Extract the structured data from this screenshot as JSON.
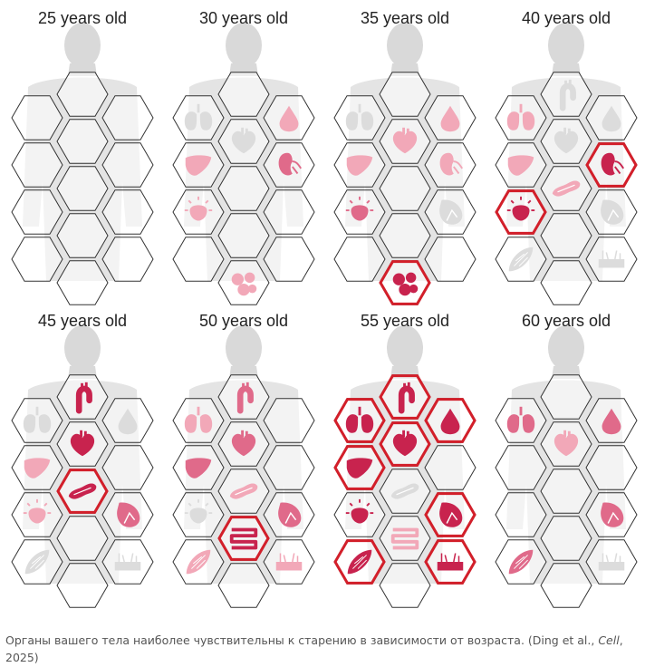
{
  "colors": {
    "highlight": "#d31f2a",
    "organ_strong": "#c8234e",
    "organ_medium": "#e06a8a",
    "organ_light": "#f2a8b8",
    "organ_faint": "#dcdcdc",
    "hex_outline": "#333333",
    "silhouette": "#d9d9d9"
  },
  "panels": [
    {
      "title": "25 years old",
      "organs": []
    },
    {
      "title": "30 years old",
      "organs": [
        {
          "slot": 1,
          "icon": "lungs-icon",
          "level": "faint",
          "highlight": false
        },
        {
          "slot": 2,
          "icon": "heart-icon",
          "level": "faint",
          "highlight": false
        },
        {
          "slot": 3,
          "icon": "blood-drop-icon",
          "level": "light",
          "highlight": false
        },
        {
          "slot": 4,
          "icon": "liver-icon",
          "level": "light",
          "highlight": false
        },
        {
          "slot": 6,
          "icon": "kidney-icon",
          "level": "medium",
          "highlight": false
        },
        {
          "slot": 7,
          "icon": "adrenal-icon",
          "level": "light",
          "highlight": false
        },
        {
          "slot": 11,
          "icon": "fat-cells-icon",
          "level": "light",
          "highlight": false
        }
      ]
    },
    {
      "title": "35 years old",
      "organs": [
        {
          "slot": 1,
          "icon": "lungs-icon",
          "level": "faint",
          "highlight": false
        },
        {
          "slot": 2,
          "icon": "heart-icon",
          "level": "light",
          "highlight": false
        },
        {
          "slot": 3,
          "icon": "blood-drop-icon",
          "level": "light",
          "highlight": false
        },
        {
          "slot": 4,
          "icon": "liver-icon",
          "level": "light",
          "highlight": false
        },
        {
          "slot": 6,
          "icon": "kidney-icon",
          "level": "light",
          "highlight": false
        },
        {
          "slot": 7,
          "icon": "adrenal-icon",
          "level": "medium",
          "highlight": false
        },
        {
          "slot": 9,
          "icon": "spleen-icon",
          "level": "faint",
          "highlight": false
        },
        {
          "slot": 11,
          "icon": "fat-cells-icon",
          "level": "strong",
          "highlight": true
        }
      ]
    },
    {
      "title": "40 years old",
      "organs": [
        {
          "slot": 0,
          "icon": "aorta-icon",
          "level": "faint",
          "highlight": false
        },
        {
          "slot": 1,
          "icon": "lungs-icon",
          "level": "light",
          "highlight": false
        },
        {
          "slot": 2,
          "icon": "heart-icon",
          "level": "faint",
          "highlight": false
        },
        {
          "slot": 3,
          "icon": "blood-drop-icon",
          "level": "faint",
          "highlight": false
        },
        {
          "slot": 4,
          "icon": "liver-icon",
          "level": "light",
          "highlight": false
        },
        {
          "slot": 5,
          "icon": "pancreas-icon",
          "level": "light",
          "highlight": false
        },
        {
          "slot": 6,
          "icon": "kidney-icon",
          "level": "strong",
          "highlight": true
        },
        {
          "slot": 7,
          "icon": "adrenal-icon",
          "level": "strong",
          "highlight": true
        },
        {
          "slot": 9,
          "icon": "spleen-icon",
          "level": "faint",
          "highlight": false
        },
        {
          "slot": 10,
          "icon": "muscle-icon",
          "level": "faint",
          "highlight": false
        },
        {
          "slot": 12,
          "icon": "skin-icon",
          "level": "faint",
          "highlight": false
        }
      ]
    },
    {
      "title": "45 years old",
      "organs": [
        {
          "slot": 0,
          "icon": "aorta-icon",
          "level": "strong",
          "highlight": false
        },
        {
          "slot": 1,
          "icon": "lungs-icon",
          "level": "faint",
          "highlight": false
        },
        {
          "slot": 2,
          "icon": "heart-icon",
          "level": "strong",
          "highlight": false
        },
        {
          "slot": 3,
          "icon": "blood-drop-icon",
          "level": "faint",
          "highlight": false
        },
        {
          "slot": 4,
          "icon": "liver-icon",
          "level": "light",
          "highlight": false
        },
        {
          "slot": 5,
          "icon": "pancreas-icon",
          "level": "strong",
          "highlight": true
        },
        {
          "slot": 7,
          "icon": "adrenal-icon",
          "level": "light",
          "highlight": false
        },
        {
          "slot": 9,
          "icon": "spleen-icon",
          "level": "medium",
          "highlight": false
        },
        {
          "slot": 10,
          "icon": "muscle-icon",
          "level": "faint",
          "highlight": false
        },
        {
          "slot": 12,
          "icon": "skin-icon",
          "level": "faint",
          "highlight": false
        }
      ]
    },
    {
      "title": "50 years old",
      "organs": [
        {
          "slot": 0,
          "icon": "aorta-icon",
          "level": "medium",
          "highlight": false
        },
        {
          "slot": 1,
          "icon": "lungs-icon",
          "level": "light",
          "highlight": false
        },
        {
          "slot": 2,
          "icon": "heart-icon",
          "level": "medium",
          "highlight": false
        },
        {
          "slot": 4,
          "icon": "liver-icon",
          "level": "medium",
          "highlight": false
        },
        {
          "slot": 5,
          "icon": "pancreas-icon",
          "level": "light",
          "highlight": false
        },
        {
          "slot": 7,
          "icon": "adrenal-icon",
          "level": "faint",
          "highlight": false
        },
        {
          "slot": 8,
          "icon": "intestine-icon",
          "level": "strong",
          "highlight": true
        },
        {
          "slot": 9,
          "icon": "spleen-icon",
          "level": "medium",
          "highlight": false
        },
        {
          "slot": 10,
          "icon": "muscle-icon",
          "level": "light",
          "highlight": false
        },
        {
          "slot": 12,
          "icon": "skin-icon",
          "level": "light",
          "highlight": false
        }
      ]
    },
    {
      "title": "55 years old",
      "organs": [
        {
          "slot": 0,
          "icon": "aorta-icon",
          "level": "strong",
          "highlight": true
        },
        {
          "slot": 1,
          "icon": "lungs-icon",
          "level": "strong",
          "highlight": true
        },
        {
          "slot": 2,
          "icon": "heart-icon",
          "level": "strong",
          "highlight": true
        },
        {
          "slot": 3,
          "icon": "blood-drop-icon",
          "level": "strong",
          "highlight": true
        },
        {
          "slot": 4,
          "icon": "liver-icon",
          "level": "strong",
          "highlight": true
        },
        {
          "slot": 5,
          "icon": "pancreas-icon",
          "level": "faint",
          "highlight": false
        },
        {
          "slot": 7,
          "icon": "adrenal-icon",
          "level": "strong",
          "highlight": false
        },
        {
          "slot": 8,
          "icon": "intestine-icon",
          "level": "light",
          "highlight": false
        },
        {
          "slot": 9,
          "icon": "spleen-icon",
          "level": "strong",
          "highlight": true
        },
        {
          "slot": 10,
          "icon": "muscle-icon",
          "level": "strong",
          "highlight": true
        },
        {
          "slot": 12,
          "icon": "skin-icon",
          "level": "strong",
          "highlight": true
        }
      ]
    },
    {
      "title": "60 years old",
      "organs": [
        {
          "slot": 1,
          "icon": "lungs-icon",
          "level": "medium",
          "highlight": false
        },
        {
          "slot": 2,
          "icon": "heart-icon",
          "level": "light",
          "highlight": false
        },
        {
          "slot": 3,
          "icon": "blood-drop-icon",
          "level": "medium",
          "highlight": false
        },
        {
          "slot": 9,
          "icon": "spleen-icon",
          "level": "medium",
          "highlight": false
        },
        {
          "slot": 10,
          "icon": "muscle-icon",
          "level": "medium",
          "highlight": false
        },
        {
          "slot": 12,
          "icon": "skin-icon",
          "level": "faint",
          "highlight": false
        }
      ]
    }
  ],
  "caption": {
    "text_before": "Органы вашего тела наиболее чувствительны к старению в зависимости от возраста. (Ding et al., ",
    "journal": "Cell",
    "text_after": ", 2025)"
  }
}
